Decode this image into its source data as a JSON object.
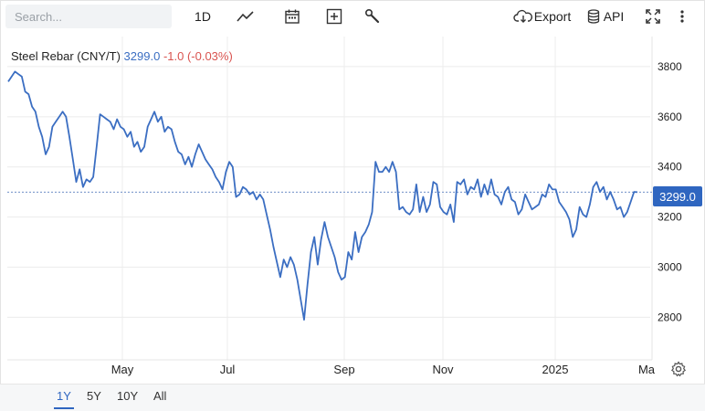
{
  "toolbar": {
    "search_placeholder": "Search...",
    "interval_label": "1D",
    "export_label": "Export",
    "api_label": "API"
  },
  "legend": {
    "name": "Steel Rebar (CNY/T)",
    "value": "3299.0",
    "change": "-1.0 (-0.03%)"
  },
  "price_tag": "3299.0",
  "ranges": [
    "1Y",
    "5Y",
    "10Y",
    "All"
  ],
  "active_range": "1Y",
  "colors": {
    "line": "#3b6ec2",
    "accent": "#2f66c0",
    "down": "#d9534f"
  },
  "chart_data": {
    "type": "line",
    "title": "Steel Rebar (CNY/T)",
    "xlabel": "",
    "ylabel": "",
    "ylim": [
      2630,
      3920
    ],
    "y_ticks": [
      2800,
      3000,
      3200,
      3400,
      3600,
      3800
    ],
    "x_tick_labels": [
      "May",
      "Jul",
      "Sep",
      "Nov",
      "2025",
      "Ma"
    ],
    "last_value": 3299.0,
    "grid": true,
    "series": [
      {
        "name": "Steel Rebar",
        "values": [
          3740,
          3760,
          3780,
          3770,
          3760,
          3700,
          3690,
          3640,
          3620,
          3560,
          3520,
          3450,
          3480,
          3560,
          3580,
          3600,
          3620,
          3600,
          3520,
          3430,
          3340,
          3390,
          3320,
          3350,
          3340,
          3360,
          3480,
          3610,
          3600,
          3590,
          3580,
          3550,
          3590,
          3560,
          3550,
          3520,
          3540,
          3480,
          3500,
          3460,
          3480,
          3560,
          3590,
          3620,
          3580,
          3600,
          3540,
          3560,
          3550,
          3500,
          3460,
          3450,
          3410,
          3440,
          3400,
          3450,
          3490,
          3460,
          3430,
          3410,
          3390,
          3360,
          3340,
          3310,
          3380,
          3420,
          3400,
          3280,
          3290,
          3320,
          3310,
          3290,
          3300,
          3270,
          3290,
          3270,
          3210,
          3150,
          3080,
          3020,
          2960,
          3030,
          3000,
          3040,
          3010,
          2950,
          2870,
          2790,
          2930,
          3060,
          3120,
          3010,
          3110,
          3180,
          3120,
          3080,
          3040,
          2980,
          2950,
          2960,
          3060,
          3030,
          3140,
          3060,
          3120,
          3140,
          3170,
          3220,
          3420,
          3380,
          3380,
          3400,
          3380,
          3420,
          3380,
          3230,
          3240,
          3220,
          3210,
          3230,
          3330,
          3220,
          3280,
          3220,
          3250,
          3340,
          3330,
          3240,
          3220,
          3210,
          3250,
          3180,
          3340,
          3330,
          3350,
          3290,
          3320,
          3310,
          3350,
          3280,
          3330,
          3290,
          3350,
          3290,
          3280,
          3250,
          3300,
          3320,
          3270,
          3260,
          3210,
          3230,
          3290,
          3260,
          3230,
          3240,
          3250,
          3290,
          3280,
          3330,
          3310,
          3310,
          3260,
          3240,
          3220,
          3190,
          3120,
          3150,
          3240,
          3210,
          3200,
          3250,
          3320,
          3340,
          3300,
          3320,
          3270,
          3300,
          3270,
          3230,
          3240,
          3200,
          3220,
          3260,
          3300,
          3299
        ]
      }
    ]
  }
}
